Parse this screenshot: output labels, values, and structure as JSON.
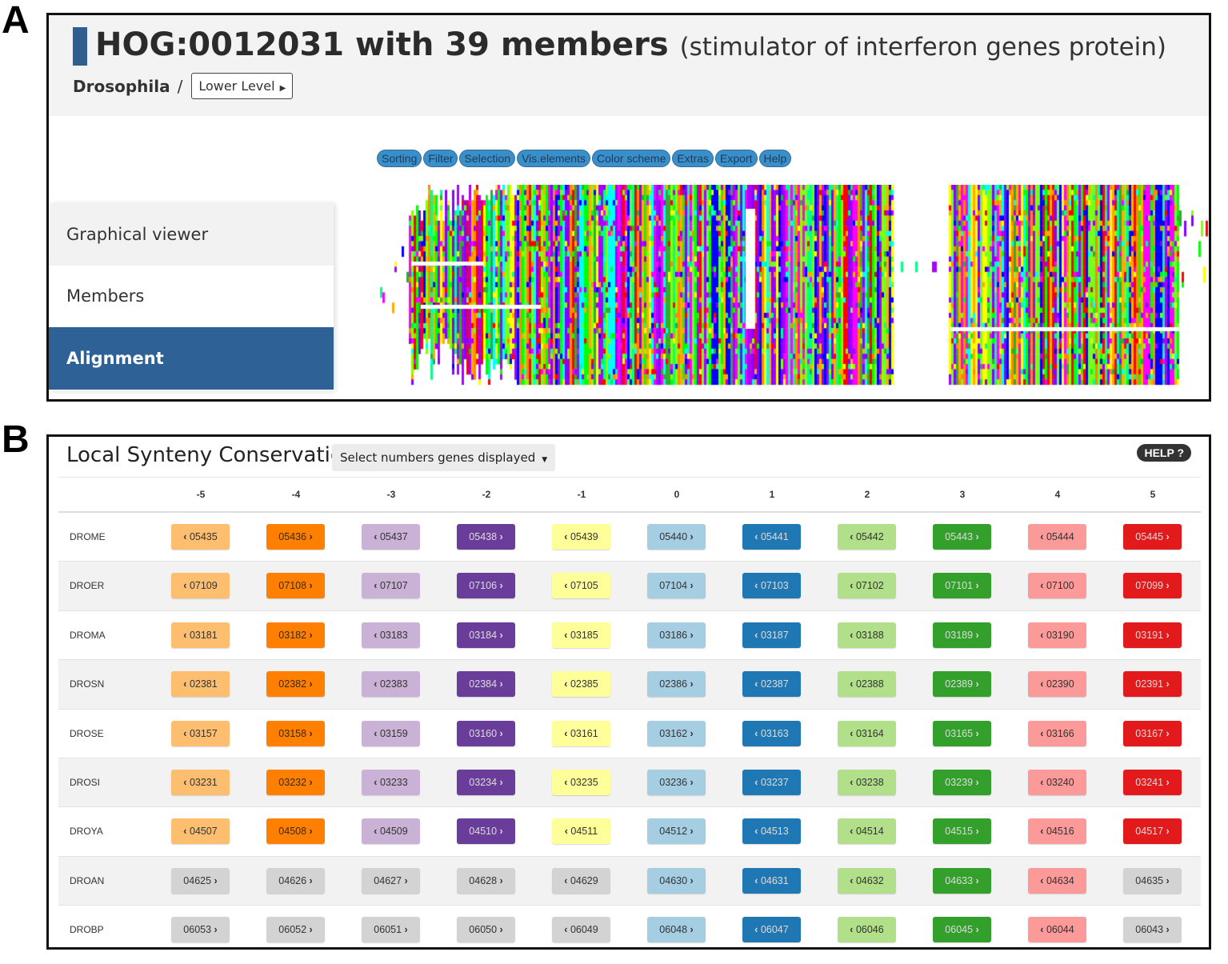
{
  "panel_labels": {
    "a": "A",
    "b": "B"
  },
  "hog": {
    "title": "HOG:0012031 with 39 members",
    "subtitle": "(stimulator of interferon genes protein)",
    "breadcrumb_taxon": "Drosophila",
    "breadcrumb_sep": "/",
    "lower_level_label": "Lower Level"
  },
  "toolbar": [
    "Sorting",
    "Filter",
    "Selection",
    "Vis.elements",
    "Color scheme",
    "Extras",
    "Export",
    "Help"
  ],
  "side_tabs": [
    {
      "label": "Graphical viewer",
      "active": false
    },
    {
      "label": "Members",
      "active": false
    },
    {
      "label": "Alignment",
      "active": true
    }
  ],
  "synteny": {
    "title": "Local Synteny Conservation",
    "select_label": "Select numbers genes displayed",
    "help_label": "HELP ?",
    "positions": [
      "-5",
      "-4",
      "-3",
      "-2",
      "-1",
      "0",
      "1",
      "2",
      "3",
      "4",
      "5"
    ],
    "palette": {
      "c0": "#fdbf6f",
      "c1": "#ff7f00",
      "c2": "#cab2d6",
      "c3": "#6a3d9a",
      "c4": "#ffff99",
      "c5": "#a6cee3",
      "c6": "#1f78b4",
      "c7": "#b2df8a",
      "c8": "#33a02c",
      "c9": "#fb9a99",
      "c10": "#e31a1c",
      "grey": "#d3d3d3"
    },
    "rows": [
      {
        "species": "DROME",
        "genes": [
          {
            "id": "05435",
            "dir": "left",
            "color": "c0"
          },
          {
            "id": "05436",
            "dir": "right",
            "color": "c1"
          },
          {
            "id": "05437",
            "dir": "left",
            "color": "c2"
          },
          {
            "id": "05438",
            "dir": "right",
            "color": "c3"
          },
          {
            "id": "05439",
            "dir": "left",
            "color": "c4"
          },
          {
            "id": "05440",
            "dir": "right",
            "color": "c5"
          },
          {
            "id": "05441",
            "dir": "left",
            "color": "c6"
          },
          {
            "id": "05442",
            "dir": "left",
            "color": "c7"
          },
          {
            "id": "05443",
            "dir": "right",
            "color": "c8"
          },
          {
            "id": "05444",
            "dir": "left",
            "color": "c9"
          },
          {
            "id": "05445",
            "dir": "right",
            "color": "c10"
          }
        ]
      },
      {
        "species": "DROER",
        "genes": [
          {
            "id": "07109",
            "dir": "left",
            "color": "c0"
          },
          {
            "id": "07108",
            "dir": "right",
            "color": "c1"
          },
          {
            "id": "07107",
            "dir": "left",
            "color": "c2"
          },
          {
            "id": "07106",
            "dir": "right",
            "color": "c3"
          },
          {
            "id": "07105",
            "dir": "left",
            "color": "c4"
          },
          {
            "id": "07104",
            "dir": "right",
            "color": "c5"
          },
          {
            "id": "07103",
            "dir": "left",
            "color": "c6"
          },
          {
            "id": "07102",
            "dir": "left",
            "color": "c7"
          },
          {
            "id": "07101",
            "dir": "right",
            "color": "c8"
          },
          {
            "id": "07100",
            "dir": "left",
            "color": "c9"
          },
          {
            "id": "07099",
            "dir": "right",
            "color": "c10"
          }
        ]
      },
      {
        "species": "DROMA",
        "genes": [
          {
            "id": "03181",
            "dir": "left",
            "color": "c0"
          },
          {
            "id": "03182",
            "dir": "right",
            "color": "c1"
          },
          {
            "id": "03183",
            "dir": "left",
            "color": "c2"
          },
          {
            "id": "03184",
            "dir": "right",
            "color": "c3"
          },
          {
            "id": "03185",
            "dir": "left",
            "color": "c4"
          },
          {
            "id": "03186",
            "dir": "right",
            "color": "c5"
          },
          {
            "id": "03187",
            "dir": "left",
            "color": "c6"
          },
          {
            "id": "03188",
            "dir": "left",
            "color": "c7"
          },
          {
            "id": "03189",
            "dir": "right",
            "color": "c8"
          },
          {
            "id": "03190",
            "dir": "left",
            "color": "c9"
          },
          {
            "id": "03191",
            "dir": "right",
            "color": "c10"
          }
        ]
      },
      {
        "species": "DROSN",
        "genes": [
          {
            "id": "02381",
            "dir": "left",
            "color": "c0"
          },
          {
            "id": "02382",
            "dir": "right",
            "color": "c1"
          },
          {
            "id": "02383",
            "dir": "left",
            "color": "c2"
          },
          {
            "id": "02384",
            "dir": "right",
            "color": "c3"
          },
          {
            "id": "02385",
            "dir": "left",
            "color": "c4"
          },
          {
            "id": "02386",
            "dir": "right",
            "color": "c5"
          },
          {
            "id": "02387",
            "dir": "left",
            "color": "c6"
          },
          {
            "id": "02388",
            "dir": "left",
            "color": "c7"
          },
          {
            "id": "02389",
            "dir": "right",
            "color": "c8"
          },
          {
            "id": "02390",
            "dir": "left",
            "color": "c9"
          },
          {
            "id": "02391",
            "dir": "right",
            "color": "c10"
          }
        ]
      },
      {
        "species": "DROSE",
        "genes": [
          {
            "id": "03157",
            "dir": "left",
            "color": "c0"
          },
          {
            "id": "03158",
            "dir": "right",
            "color": "c1"
          },
          {
            "id": "03159",
            "dir": "left",
            "color": "c2"
          },
          {
            "id": "03160",
            "dir": "right",
            "color": "c3"
          },
          {
            "id": "03161",
            "dir": "left",
            "color": "c4"
          },
          {
            "id": "03162",
            "dir": "right",
            "color": "c5"
          },
          {
            "id": "03163",
            "dir": "left",
            "color": "c6"
          },
          {
            "id": "03164",
            "dir": "left",
            "color": "c7"
          },
          {
            "id": "03165",
            "dir": "right",
            "color": "c8"
          },
          {
            "id": "03166",
            "dir": "left",
            "color": "c9"
          },
          {
            "id": "03167",
            "dir": "right",
            "color": "c10"
          }
        ]
      },
      {
        "species": "DROSI",
        "genes": [
          {
            "id": "03231",
            "dir": "left",
            "color": "c0"
          },
          {
            "id": "03232",
            "dir": "right",
            "color": "c1"
          },
          {
            "id": "03233",
            "dir": "left",
            "color": "c2"
          },
          {
            "id": "03234",
            "dir": "right",
            "color": "c3"
          },
          {
            "id": "03235",
            "dir": "left",
            "color": "c4"
          },
          {
            "id": "03236",
            "dir": "right",
            "color": "c5"
          },
          {
            "id": "03237",
            "dir": "left",
            "color": "c6"
          },
          {
            "id": "03238",
            "dir": "left",
            "color": "c7"
          },
          {
            "id": "03239",
            "dir": "right",
            "color": "c8"
          },
          {
            "id": "03240",
            "dir": "left",
            "color": "c9"
          },
          {
            "id": "03241",
            "dir": "right",
            "color": "c10"
          }
        ]
      },
      {
        "species": "DROYA",
        "genes": [
          {
            "id": "04507",
            "dir": "left",
            "color": "c0"
          },
          {
            "id": "04508",
            "dir": "right",
            "color": "c1"
          },
          {
            "id": "04509",
            "dir": "left",
            "color": "c2"
          },
          {
            "id": "04510",
            "dir": "right",
            "color": "c3"
          },
          {
            "id": "04511",
            "dir": "left",
            "color": "c4"
          },
          {
            "id": "04512",
            "dir": "right",
            "color": "c5"
          },
          {
            "id": "04513",
            "dir": "left",
            "color": "c6"
          },
          {
            "id": "04514",
            "dir": "left",
            "color": "c7"
          },
          {
            "id": "04515",
            "dir": "right",
            "color": "c8"
          },
          {
            "id": "04516",
            "dir": "left",
            "color": "c9"
          },
          {
            "id": "04517",
            "dir": "right",
            "color": "c10"
          }
        ]
      },
      {
        "species": "DROAN",
        "genes": [
          {
            "id": "04625",
            "dir": "right",
            "color": "grey"
          },
          {
            "id": "04626",
            "dir": "right",
            "color": "grey"
          },
          {
            "id": "04627",
            "dir": "right",
            "color": "grey"
          },
          {
            "id": "04628",
            "dir": "right",
            "color": "grey"
          },
          {
            "id": "04629",
            "dir": "left",
            "color": "grey"
          },
          {
            "id": "04630",
            "dir": "right",
            "color": "c5"
          },
          {
            "id": "04631",
            "dir": "left",
            "color": "c6"
          },
          {
            "id": "04632",
            "dir": "left",
            "color": "c7"
          },
          {
            "id": "04633",
            "dir": "right",
            "color": "c8"
          },
          {
            "id": "04634",
            "dir": "left",
            "color": "c9"
          },
          {
            "id": "04635",
            "dir": "right",
            "color": "grey"
          }
        ]
      },
      {
        "species": "DROBP",
        "genes": [
          {
            "id": "06053",
            "dir": "right",
            "color": "grey"
          },
          {
            "id": "06052",
            "dir": "right",
            "color": "grey"
          },
          {
            "id": "06051",
            "dir": "right",
            "color": "grey"
          },
          {
            "id": "06050",
            "dir": "right",
            "color": "grey"
          },
          {
            "id": "06049",
            "dir": "left",
            "color": "grey"
          },
          {
            "id": "06048",
            "dir": "right",
            "color": "c5"
          },
          {
            "id": "06047",
            "dir": "left",
            "color": "c6"
          },
          {
            "id": "06046",
            "dir": "left",
            "color": "c7"
          },
          {
            "id": "06045",
            "dir": "right",
            "color": "c8"
          },
          {
            "id": "06044",
            "dir": "left",
            "color": "c9"
          },
          {
            "id": "06043",
            "dir": "right",
            "color": "grey"
          }
        ]
      }
    ]
  }
}
